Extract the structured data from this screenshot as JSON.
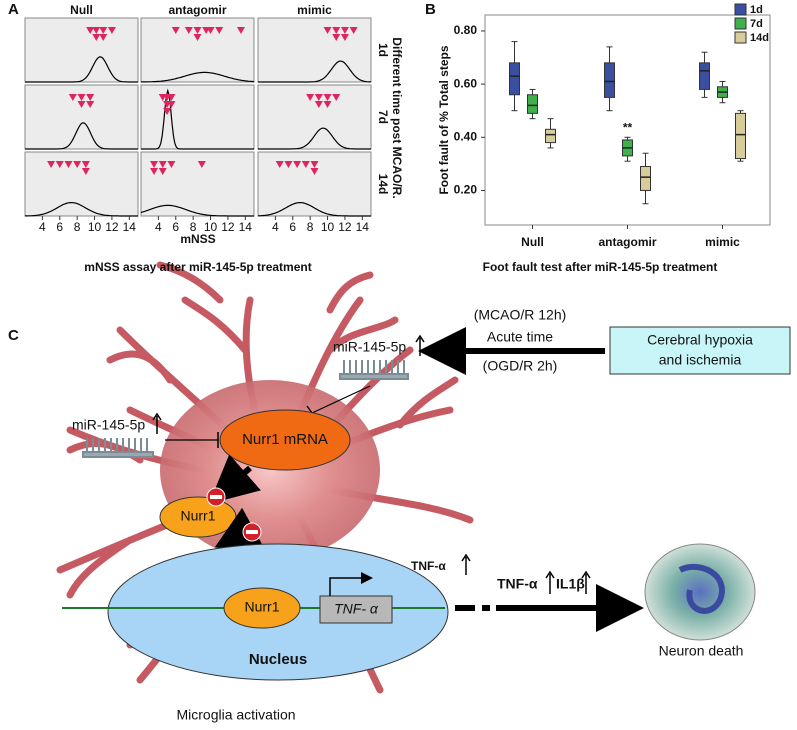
{
  "chart_data": [
    {
      "type": "dot-density",
      "panel_label": "A",
      "columns": [
        "Null",
        "antagomir",
        "mimic"
      ],
      "rows": [
        "1d",
        "7d",
        "14d"
      ],
      "row_axis_label": "Different time post MCAO/R.",
      "xlabel": "mNSS",
      "caption": "mNSS assay after miR-145-5p treatment",
      "xlim": [
        2,
        15
      ],
      "xticks": [
        4,
        6,
        8,
        10,
        12,
        14
      ],
      "marker_color": "#e0245e",
      "points": [
        [
          [
            9.5,
            10.2,
            10.2,
            11,
            11,
            12
          ],
          [
            6,
            7.5,
            8.5,
            8.5,
            9.5,
            10,
            11,
            13.5
          ],
          [
            10,
            11,
            11,
            12,
            12,
            13
          ]
        ],
        [
          [
            7.5,
            8.5,
            8.5,
            9.5,
            9.5
          ],
          [
            4.5,
            5,
            5,
            5,
            5.5,
            5.5
          ],
          [
            8,
            9,
            9,
            10,
            10,
            11
          ]
        ],
        [
          [
            5,
            6,
            7,
            8,
            9,
            9
          ],
          [
            3.5,
            3.5,
            4.5,
            4.5,
            5.5,
            9
          ],
          [
            4.5,
            5.5,
            6.5,
            7.5,
            8.5,
            8.5
          ]
        ]
      ]
    },
    {
      "type": "box",
      "panel_label": "B",
      "categories": [
        "Null",
        "antagomir",
        "mimic"
      ],
      "ylabel": "Foot fault of % Total steps",
      "caption": "Foot fault test after miR-145-5p treatment",
      "legend": "upper right",
      "annotation": "**",
      "ylim": [
        0.07,
        0.86
      ],
      "yticks": [
        {
          "value": 0.2,
          "label": "0.20"
        },
        {
          "value": 0.4,
          "label": "0.40"
        },
        {
          "value": 0.6,
          "label": "0.60"
        },
        {
          "value": 0.8,
          "label": "0.80"
        }
      ],
      "series": [
        {
          "name": "1d",
          "color": "#3a4fa0",
          "values": [
            [
              0.5,
              0.56,
              0.63,
              0.68,
              0.76
            ],
            [
              0.5,
              0.55,
              0.61,
              0.68,
              0.74
            ],
            [
              0.55,
              0.58,
              0.65,
              0.68,
              0.72
            ]
          ]
        },
        {
          "name": "7d",
          "color": "#3fb04a",
          "values": [
            [
              0.47,
              0.49,
              0.52,
              0.56,
              0.58
            ],
            [
              0.31,
              0.33,
              0.36,
              0.39,
              0.4
            ],
            [
              0.53,
              0.55,
              0.57,
              0.59,
              0.61
            ]
          ]
        },
        {
          "name": "14d",
          "color": "#d8cc9a",
          "values": [
            [
              0.36,
              0.38,
              0.41,
              0.43,
              0.47
            ],
            [
              0.15,
              0.2,
              0.25,
              0.29,
              0.34
            ],
            [
              0.31,
              0.32,
              0.41,
              0.49,
              0.5
            ]
          ]
        }
      ]
    }
  ],
  "diagram": {
    "panel_label": "C",
    "acute": {
      "top": "(MCAO/R 12h)",
      "middle": "Acute time",
      "bottom": "(OGD/R 2h)"
    },
    "stimulus": [
      "Cerebral hypoxia",
      "and ischemia"
    ],
    "mirna": [
      "miR-145-5p",
      "miR-145-5p"
    ],
    "nodes": [
      "Nurr1 mRNA",
      "Nurr1",
      "Nurr1"
    ],
    "gene": "TNF- α",
    "nucleus": "Nucleus",
    "tnf_release": "TNF-α",
    "cytokines": [
      "TNF-α",
      "IL1β"
    ],
    "outcome": "Neuron death",
    "cell": "Microglia activation"
  }
}
